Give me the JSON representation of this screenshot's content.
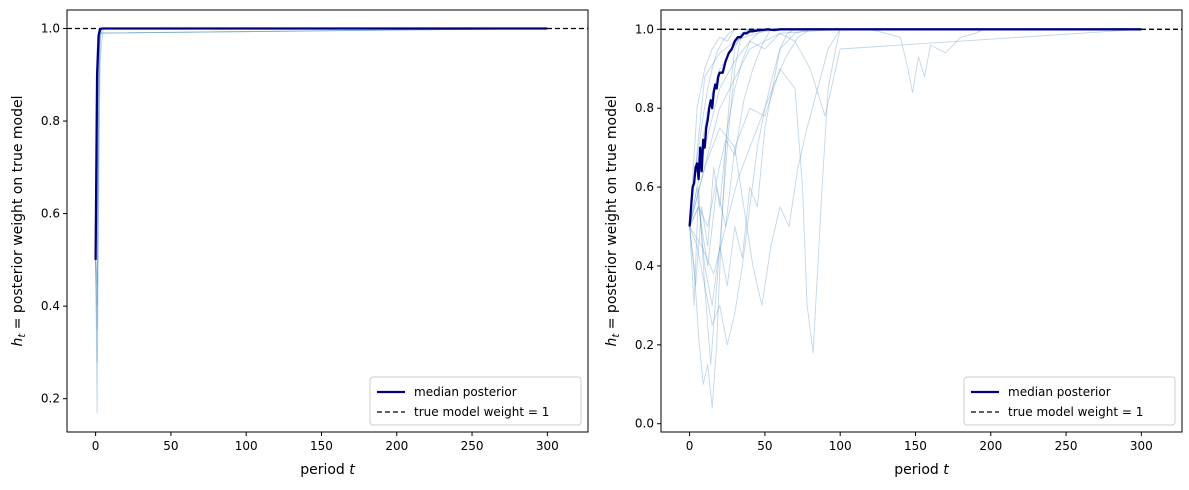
{
  "chart_data": [
    {
      "type": "line",
      "xlabel": "period t",
      "ylabel": "h_t = posterior weight on true model",
      "xlim": [
        -19,
        327
      ],
      "ylim": [
        0.128,
        1.04
      ],
      "xticks": [
        0,
        50,
        100,
        150,
        200,
        250,
        300
      ],
      "yticks": [
        0.2,
        0.4,
        0.6,
        0.8,
        1.0
      ],
      "ytick_format": 1,
      "grid": false,
      "legend_position": "lower-right",
      "reference_line": {
        "label": "true model weight = 1",
        "y": 1.0,
        "style": "dashed",
        "color": "#000000"
      },
      "median": {
        "label": "median posterior",
        "color": "#00007f",
        "x": [
          0,
          1,
          2,
          3,
          4,
          5,
          6,
          8,
          300
        ],
        "y": [
          0.5,
          0.9,
          0.985,
          0.998,
          1.0,
          1.0,
          1.0,
          1.0,
          1.0
        ]
      },
      "paths_color": "#4e8cc0",
      "paths": [
        {
          "x": [
            0,
            1,
            2,
            3,
            4,
            300
          ],
          "y": [
            0.5,
            0.35,
            0.72,
            0.97,
            1.0,
            1.0
          ]
        },
        {
          "x": [
            0,
            1,
            2,
            3,
            5,
            300
          ],
          "y": [
            0.5,
            0.17,
            0.6,
            0.93,
            1.0,
            1.0
          ]
        },
        {
          "x": [
            0,
            1,
            2,
            3,
            300
          ],
          "y": [
            0.5,
            0.45,
            0.9,
            0.99,
            1.0
          ]
        },
        {
          "x": [
            0,
            1,
            2,
            3,
            300
          ],
          "y": [
            0.5,
            0.62,
            0.95,
            1.0,
            1.0
          ]
        },
        {
          "x": [
            0,
            1,
            2,
            3,
            4,
            300
          ],
          "y": [
            0.5,
            0.28,
            0.8,
            0.98,
            1.0,
            1.0
          ]
        },
        {
          "x": [
            0,
            1,
            2,
            300
          ],
          "y": [
            0.5,
            0.8,
            0.99,
            1.0
          ]
        },
        {
          "x": [
            0,
            1,
            2,
            3,
            300
          ],
          "y": [
            0.5,
            0.4,
            0.85,
            0.99,
            1.0
          ]
        },
        {
          "x": [
            0,
            1,
            2,
            300
          ],
          "y": [
            0.5,
            0.92,
            1.0,
            1.0
          ]
        }
      ]
    },
    {
      "type": "line",
      "xlabel": "period t",
      "ylabel": "h_t = posterior weight on true model",
      "xlim": [
        -19,
        327
      ],
      "ylim": [
        -0.021,
        1.049
      ],
      "xticks": [
        0,
        50,
        100,
        150,
        200,
        250,
        300
      ],
      "yticks": [
        0.0,
        0.2,
        0.4,
        0.6,
        0.8,
        1.0
      ],
      "ytick_format": 1,
      "grid": false,
      "legend_position": "lower-right",
      "reference_line": {
        "label": "true model weight = 1",
        "y": 1.0,
        "style": "dashed",
        "color": "#000000"
      },
      "median": {
        "label": "median posterior",
        "color": "#00007f",
        "x": [
          0,
          2,
          3,
          4,
          5,
          6,
          7,
          8,
          9,
          10,
          11,
          12,
          13,
          14,
          15,
          16,
          17,
          18,
          19,
          20,
          22,
          24,
          26,
          28,
          30,
          32,
          34,
          36,
          38,
          40,
          42,
          45,
          48,
          52,
          56,
          60,
          70,
          80,
          300
        ],
        "y": [
          0.5,
          0.6,
          0.61,
          0.65,
          0.66,
          0.62,
          0.7,
          0.64,
          0.72,
          0.7,
          0.75,
          0.77,
          0.8,
          0.82,
          0.8,
          0.84,
          0.86,
          0.85,
          0.88,
          0.89,
          0.89,
          0.92,
          0.94,
          0.95,
          0.97,
          0.98,
          0.98,
          0.99,
          0.99,
          0.995,
          0.995,
          0.997,
          0.998,
          1.0,
          0.998,
          1.0,
          1.0,
          1.0,
          1.0
        ]
      },
      "paths_color": "#4e8cc0",
      "paths": [
        {
          "x": [
            0,
            3,
            6,
            9,
            12,
            15,
            18,
            21,
            24,
            27,
            30,
            34,
            40,
            300
          ],
          "y": [
            0.5,
            0.4,
            0.22,
            0.1,
            0.15,
            0.04,
            0.2,
            0.48,
            0.7,
            0.85,
            0.95,
            0.99,
            1.0,
            1.0
          ]
        },
        {
          "x": [
            0,
            3,
            6,
            10,
            14,
            18,
            22,
            26,
            30,
            34,
            40,
            300
          ],
          "y": [
            0.5,
            0.3,
            0.6,
            0.35,
            0.15,
            0.35,
            0.55,
            0.75,
            0.9,
            0.98,
            1.0,
            1.0
          ]
        },
        {
          "x": [
            0,
            5,
            10,
            15,
            20,
            25,
            30,
            35,
            40,
            45,
            50,
            55,
            60,
            70,
            80,
            300
          ],
          "y": [
            0.5,
            0.6,
            0.4,
            0.3,
            0.45,
            0.35,
            0.5,
            0.42,
            0.6,
            0.55,
            0.75,
            0.85,
            0.95,
            0.99,
            1.0,
            1.0
          ]
        },
        {
          "x": [
            0,
            6,
            12,
            18,
            24,
            30,
            36,
            42,
            48,
            54,
            60,
            66,
            72,
            78,
            85,
            92,
            100,
            300
          ],
          "y": [
            0.5,
            0.55,
            0.4,
            0.6,
            0.5,
            0.7,
            0.55,
            0.4,
            0.3,
            0.45,
            0.55,
            0.5,
            0.65,
            0.75,
            0.85,
            0.95,
            1.0,
            1.0
          ]
        },
        {
          "x": [
            0,
            10,
            20,
            30,
            40,
            50,
            60,
            70,
            75,
            78,
            82,
            88,
            92,
            97,
            100,
            300
          ],
          "y": [
            0.5,
            0.65,
            0.75,
            0.7,
            0.8,
            0.78,
            0.9,
            0.85,
            0.6,
            0.3,
            0.18,
            0.6,
            0.85,
            0.95,
            1.0,
            1.0
          ]
        },
        {
          "x": [
            0,
            5,
            10,
            15,
            20,
            25,
            30,
            35,
            40,
            45,
            50,
            55,
            60,
            65,
            70,
            300
          ],
          "y": [
            0.5,
            0.45,
            0.35,
            0.25,
            0.3,
            0.2,
            0.28,
            0.4,
            0.55,
            0.7,
            0.8,
            0.88,
            0.95,
            0.99,
            1.0,
            1.0
          ]
        },
        {
          "x": [
            0,
            10,
            20,
            30,
            40,
            50,
            60,
            70,
            80,
            90,
            100,
            300
          ],
          "y": [
            0.5,
            0.7,
            0.85,
            0.92,
            0.97,
            0.95,
            0.99,
            0.97,
            0.9,
            0.78,
            0.95,
            1.0
          ]
        },
        {
          "x": [
            0,
            20,
            40,
            60,
            80,
            100,
            120,
            130,
            140,
            145,
            148,
            152,
            156,
            160,
            170,
            180,
            190,
            195,
            200,
            300
          ],
          "y": [
            0.5,
            0.8,
            0.95,
            0.99,
            0.995,
            1.0,
            1.0,
            0.99,
            0.98,
            0.9,
            0.84,
            0.93,
            0.88,
            0.96,
            0.94,
            0.98,
            0.99,
            1.0,
            1.0,
            1.0
          ]
        },
        {
          "x": [
            0,
            4,
            8,
            12,
            16,
            20,
            24,
            28,
            32,
            36,
            40,
            46,
            300
          ],
          "y": [
            0.5,
            0.65,
            0.7,
            0.8,
            0.85,
            0.9,
            0.92,
            0.95,
            0.97,
            0.99,
            1.0,
            1.0,
            1.0
          ]
        },
        {
          "x": [
            0,
            4,
            8,
            12,
            16,
            20,
            25,
            30,
            35,
            40,
            48,
            300
          ],
          "y": [
            0.5,
            0.35,
            0.55,
            0.45,
            0.65,
            0.55,
            0.75,
            0.85,
            0.92,
            0.97,
            1.0,
            1.0
          ]
        },
        {
          "x": [
            0,
            6,
            12,
            18,
            24,
            30,
            36,
            42,
            48,
            54,
            300
          ],
          "y": [
            0.5,
            0.55,
            0.5,
            0.62,
            0.72,
            0.68,
            0.82,
            0.9,
            0.96,
            1.0,
            1.0
          ]
        },
        {
          "x": [
            0,
            5,
            10,
            15,
            20,
            25,
            30,
            40,
            300
          ],
          "y": [
            0.5,
            0.8,
            0.9,
            0.95,
            0.98,
            0.97,
            1.0,
            1.0,
            1.0
          ]
        },
        {
          "x": [
            0,
            3,
            6,
            9,
            12,
            15,
            18,
            22,
            26,
            30,
            35,
            300
          ],
          "y": [
            0.5,
            0.62,
            0.7,
            0.78,
            0.85,
            0.9,
            0.94,
            0.97,
            0.99,
            1.0,
            1.0,
            1.0
          ]
        },
        {
          "x": [
            0,
            8,
            16,
            24,
            32,
            40,
            48,
            56,
            64,
            72,
            80,
            300
          ],
          "y": [
            0.5,
            0.45,
            0.38,
            0.5,
            0.62,
            0.7,
            0.78,
            0.86,
            0.93,
            0.98,
            1.0,
            1.0
          ]
        },
        {
          "x": [
            0,
            10,
            20,
            30,
            40,
            50,
            60,
            300
          ],
          "y": [
            0.5,
            0.88,
            0.94,
            0.97,
            0.985,
            0.995,
            1.0,
            1.0
          ]
        }
      ]
    }
  ]
}
